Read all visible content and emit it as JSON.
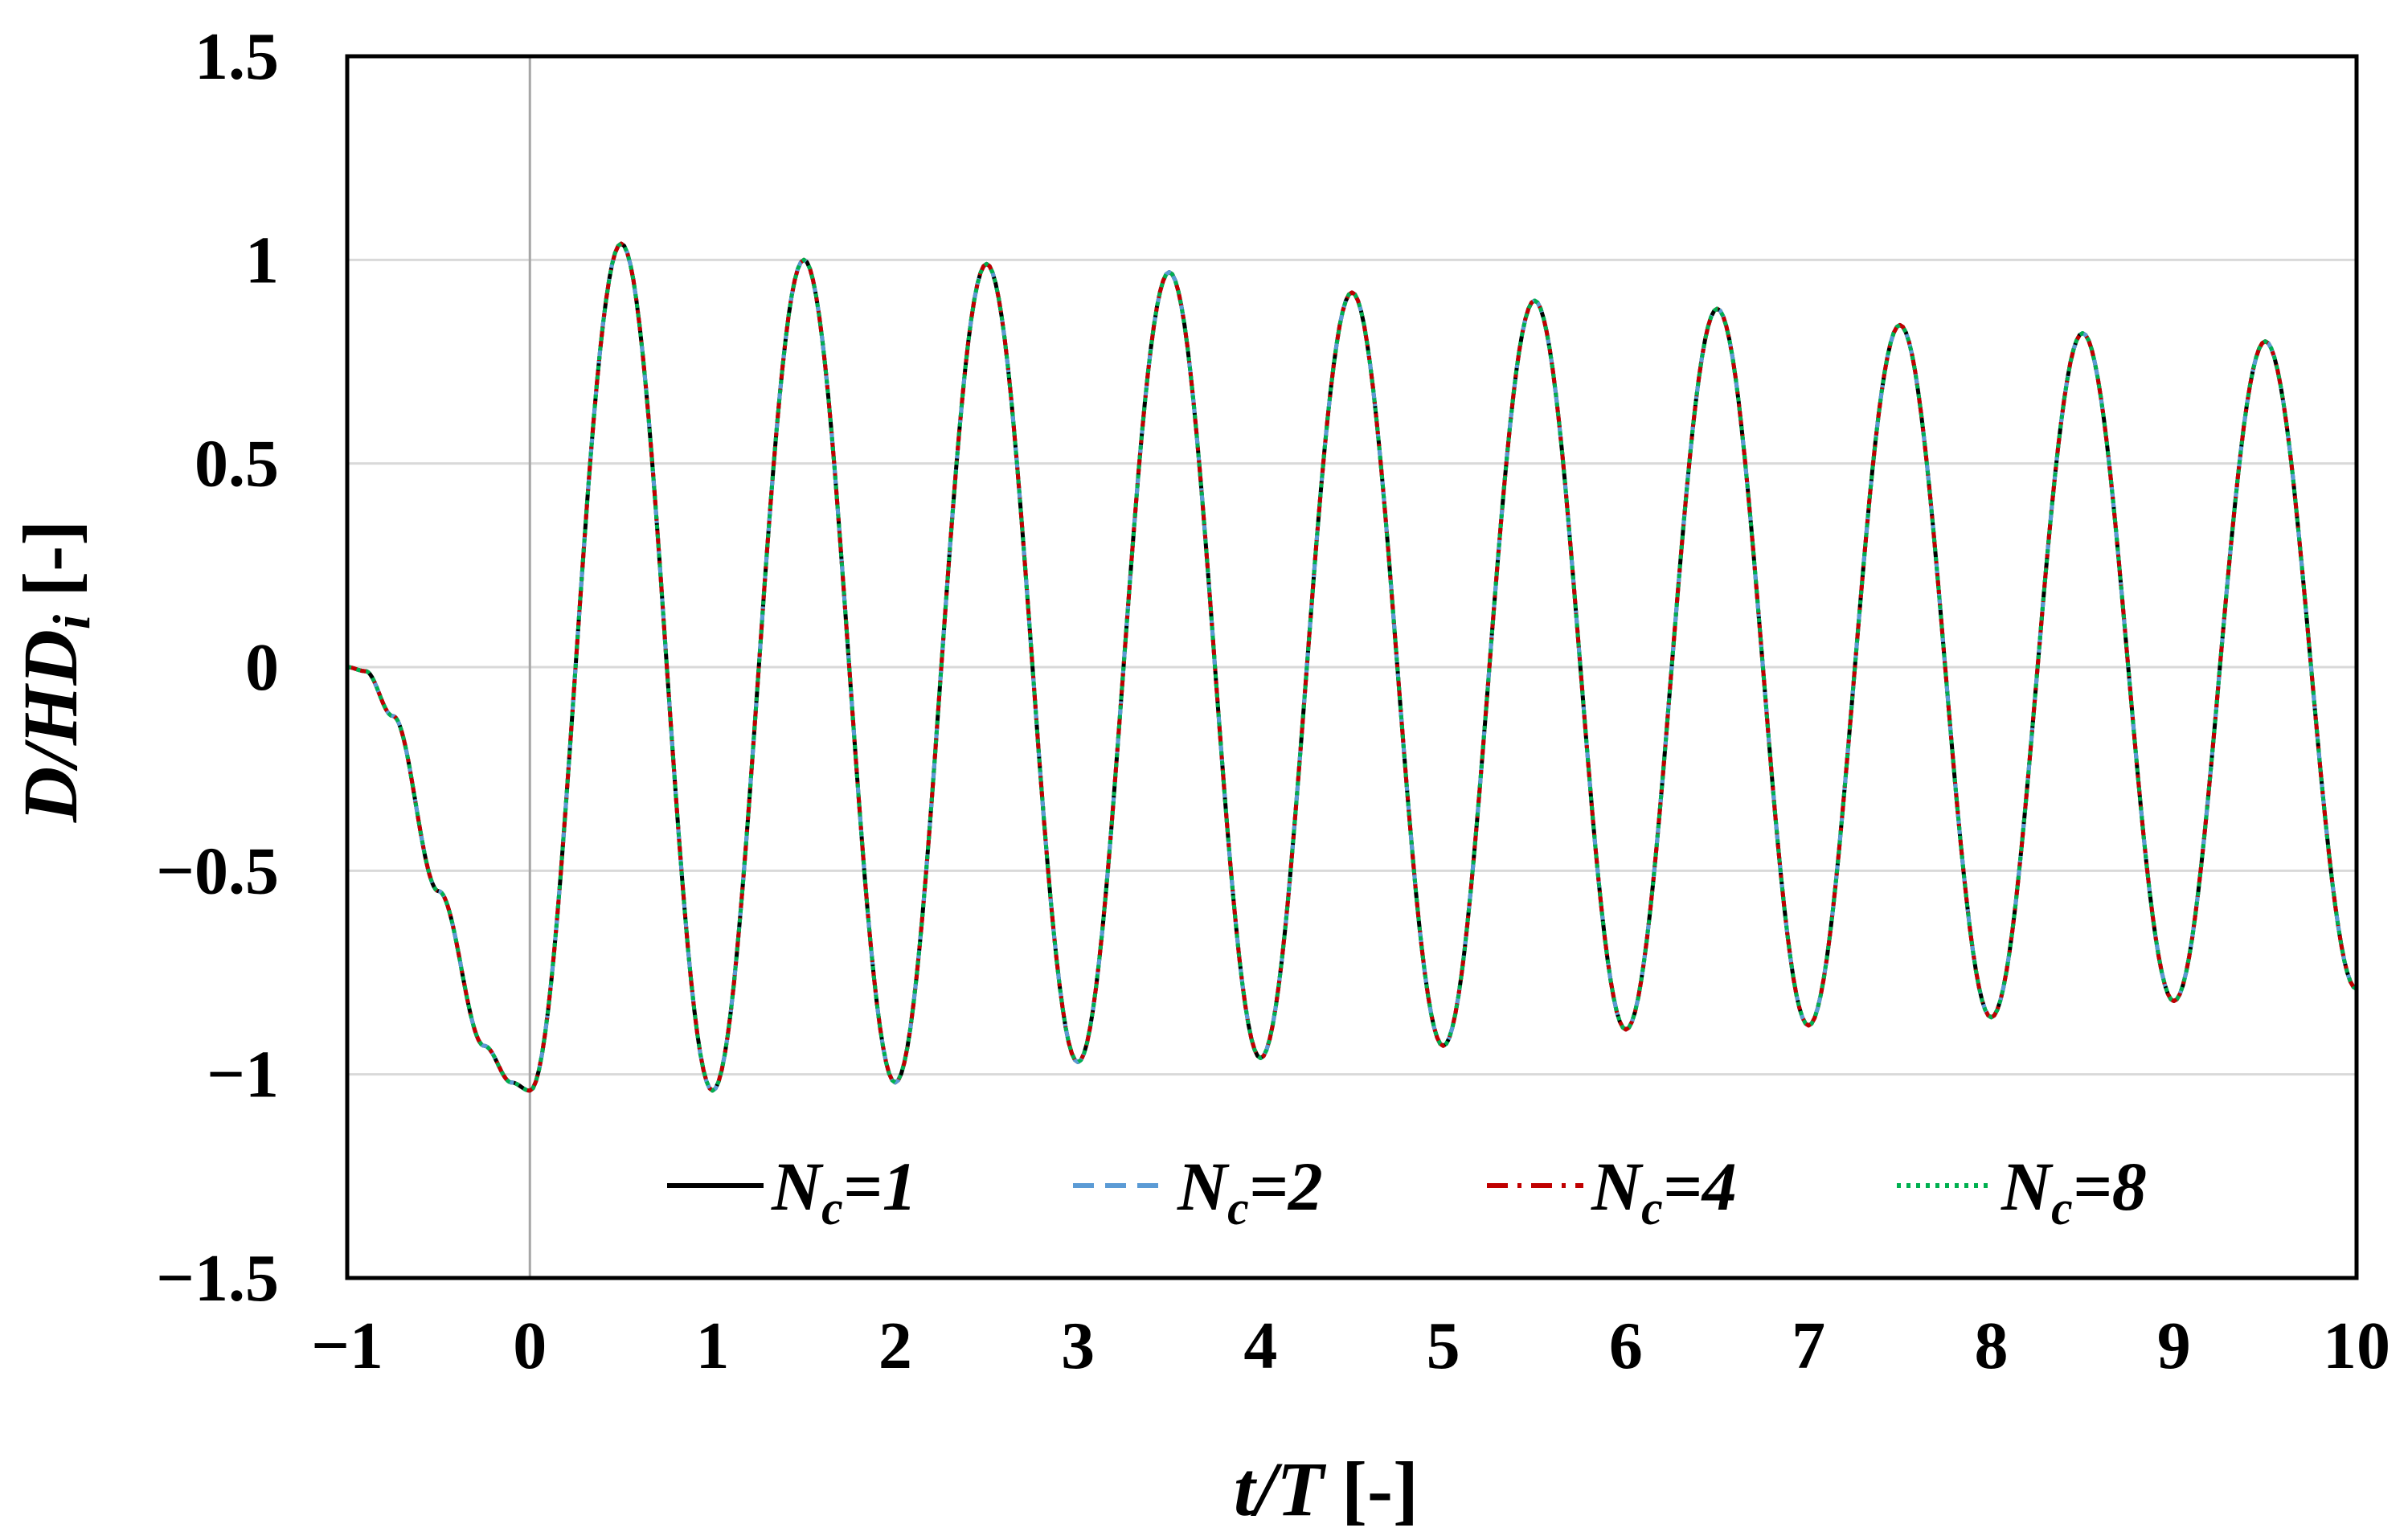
{
  "chart_data": {
    "type": "line",
    "xlabel": {
      "main": "t/T",
      "unit": "[-]"
    },
    "ylabel": {
      "main": "D/HD",
      "sub": "i",
      "unit": "[-]"
    },
    "xlim": [
      -1,
      10
    ],
    "ylim": [
      -1.5,
      1.5
    ],
    "xticks": [
      -1,
      0,
      1,
      2,
      3,
      4,
      5,
      6,
      7,
      8,
      9,
      10
    ],
    "yticks": [
      -1.5,
      -1,
      -0.5,
      0,
      0.5,
      1,
      1.5
    ],
    "xtick_labels": [
      "−1",
      "0",
      "1",
      "2",
      "3",
      "4",
      "5",
      "6",
      "7",
      "8",
      "9",
      "10"
    ],
    "ytick_labels": [
      "−1.5",
      "−1",
      "−0.5",
      "0",
      "0.5",
      "1",
      "1.5"
    ],
    "grid": "horizontal",
    "reference_line_x": 0,
    "legend_position": "bottom inside",
    "series": [
      {
        "name": "N_c=1",
        "label_main": "N",
        "label_sub": "c",
        "label_tail": "=1",
        "color": "#000000",
        "dash": "solid"
      },
      {
        "name": "N_c=2",
        "label_main": "N",
        "label_sub": "c",
        "label_tail": "=2",
        "color": "#5b9bd5",
        "dash": "dashed"
      },
      {
        "name": "N_c=4",
        "label_main": "N",
        "label_sub": "c",
        "label_tail": "=4",
        "color": "#c00000",
        "dash": "dashdot"
      },
      {
        "name": "N_c=8",
        "label_main": "N",
        "label_sub": "c",
        "label_tail": "=8",
        "color": "#00b050",
        "dash": "dotted"
      }
    ],
    "x": [
      -1,
      -0.9,
      -0.75,
      -0.5,
      -0.25,
      -0.1,
      0,
      0.5,
      1,
      1.5,
      2,
      2.5,
      3,
      3.5,
      4,
      4.5,
      5,
      5.5,
      6,
      6.5,
      7,
      7.5,
      8,
      8.5,
      9,
      9.5,
      10
    ],
    "y": [
      0,
      -0.01,
      -0.12,
      -0.55,
      -0.93,
      -1.02,
      -1.04,
      1.04,
      -1.04,
      1.0,
      -1.02,
      0.99,
      -0.97,
      0.97,
      -0.96,
      0.92,
      -0.93,
      0.9,
      -0.89,
      0.88,
      -0.88,
      0.84,
      -0.86,
      0.82,
      -0.82,
      0.8,
      -0.79
    ]
  }
}
